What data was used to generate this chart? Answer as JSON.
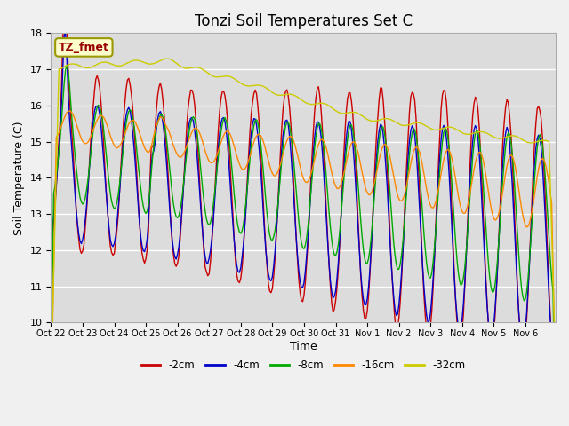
{
  "title": "Tonzi Soil Temperatures Set C",
  "xlabel": "Time",
  "ylabel": "Soil Temperature (C)",
  "ylim": [
    10.0,
    18.0
  ],
  "yticks": [
    10.0,
    11.0,
    12.0,
    13.0,
    14.0,
    15.0,
    16.0,
    17.0,
    18.0
  ],
  "xtick_labels": [
    "Oct 22",
    "Oct 23",
    "Oct 24",
    "Oct 25",
    "Oct 26",
    "Oct 27",
    "Oct 28",
    "Oct 29",
    "Oct 30",
    "Oct 31",
    "Nov 1",
    "Nov 2",
    "Nov 3",
    "Nov 4",
    "Nov 5",
    "Nov 6"
  ],
  "legend_entries": [
    "-2cm",
    "-4cm",
    "-8cm",
    "-16cm",
    "-32cm"
  ],
  "line_colors": [
    "#cc0000",
    "#0000cc",
    "#00aa00",
    "#ff8800",
    "#cccc00"
  ],
  "annotation_text": "TZ_fmet",
  "annotation_color": "#990000",
  "annotation_bg": "#ffffcc",
  "annotation_border": "#999900",
  "plot_bg": "#dcdcdc",
  "fig_bg": "#f0f0f0",
  "grid_color": "#ffffff",
  "title_fontsize": 12,
  "axis_label_fontsize": 9,
  "tick_fontsize": 8
}
